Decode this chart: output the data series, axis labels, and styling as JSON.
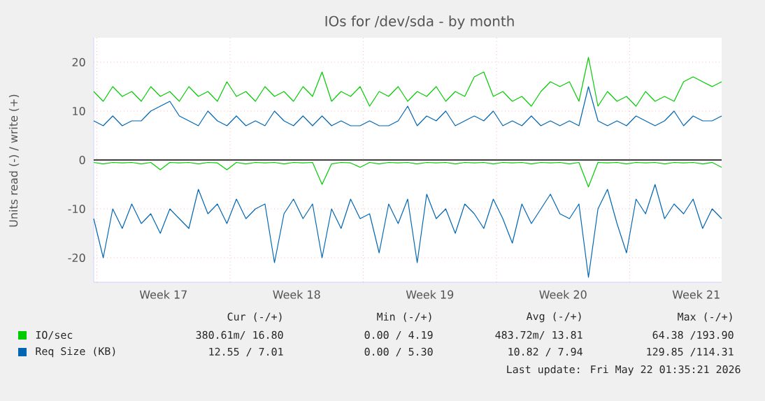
{
  "chart_data": {
    "type": "line",
    "title": "IOs for /dev/sda - by month",
    "ylabel": "Units read (-) / write (+)",
    "x": [
      "2026-04-19T20:00",
      "2026-04-20T08:00",
      "2026-04-20T20:00",
      "2026-04-21T08:00",
      "2026-04-21T20:00",
      "2026-04-22T08:00",
      "2026-04-22T20:00",
      "2026-04-23T08:00",
      "2026-04-23T20:00",
      "2026-04-24T08:00",
      "2026-04-24T20:00",
      "2026-04-25T08:00",
      "2026-04-25T20:00",
      "2026-04-26T08:00",
      "2026-04-26T20:00",
      "2026-04-27T08:00",
      "2026-04-27T20:00",
      "2026-04-28T08:00",
      "2026-04-28T20:00",
      "2026-04-29T08:00",
      "2026-04-29T20:00",
      "2026-04-30T08:00",
      "2026-04-30T20:00",
      "2026-05-01T08:00",
      "2026-05-01T20:00",
      "2026-05-02T08:00",
      "2026-05-02T20:00",
      "2026-05-03T08:00",
      "2026-05-03T20:00",
      "2026-05-04T08:00",
      "2026-05-04T20:00",
      "2026-05-05T08:00",
      "2026-05-05T20:00",
      "2026-05-06T08:00",
      "2026-05-06T20:00",
      "2026-05-07T08:00",
      "2026-05-07T20:00",
      "2026-05-08T08:00",
      "2026-05-08T20:00",
      "2026-05-09T08:00",
      "2026-05-09T20:00",
      "2026-05-10T08:00",
      "2026-05-10T20:00",
      "2026-05-11T08:00",
      "2026-05-11T20:00",
      "2026-05-12T08:00",
      "2026-05-12T20:00",
      "2026-05-13T08:00",
      "2026-05-13T20:00",
      "2026-05-14T08:00",
      "2026-05-14T20:00",
      "2026-05-15T08:00",
      "2026-05-15T20:00",
      "2026-05-16T08:00",
      "2026-05-16T20:00",
      "2026-05-17T08:00",
      "2026-05-17T20:00",
      "2026-05-18T08:00",
      "2026-05-18T20:00",
      "2026-05-19T08:00",
      "2026-05-19T20:00",
      "2026-05-20T08:00",
      "2026-05-20T20:00",
      "2026-05-21T08:00",
      "2026-05-21T20:00",
      "2026-05-22T08:00",
      "2026-05-22T20:00"
    ],
    "series": [
      {
        "name": "IO/sec",
        "color": "#00cc00",
        "values": [
          14,
          12,
          15,
          13,
          14,
          12,
          15,
          13,
          14,
          12,
          15,
          13,
          14,
          12,
          16,
          13,
          14,
          12,
          15,
          13,
          14,
          12,
          15,
          13,
          18,
          12,
          14,
          13,
          15,
          11,
          14,
          13,
          15,
          12,
          14,
          13,
          15,
          12,
          14,
          13,
          17,
          18,
          13,
          14,
          12,
          13,
          11,
          14,
          16,
          15,
          16,
          12,
          21,
          11,
          14,
          12,
          13,
          11,
          14,
          12,
          13,
          12,
          16,
          17,
          16,
          15,
          16
        ]
      },
      {
        "color": "#00cc00",
        "values": [
          -0.5,
          -0.8,
          -0.5,
          -0.6,
          -0.5,
          -0.8,
          -0.5,
          -2,
          -0.5,
          -0.6,
          -0.5,
          -0.8,
          -0.5,
          -0.6,
          -2,
          -0.5,
          -0.8,
          -0.5,
          -0.6,
          -0.5,
          -0.8,
          -0.5,
          -0.6,
          -0.5,
          -5,
          -0.8,
          -0.5,
          -0.6,
          -1.5,
          -0.5,
          -0.8,
          -0.5,
          -0.6,
          -0.5,
          -0.8,
          -0.5,
          -0.6,
          -0.5,
          -0.8,
          -0.5,
          -0.6,
          -0.5,
          -0.8,
          -0.5,
          -0.6,
          -0.5,
          -0.8,
          -0.5,
          -0.6,
          -0.5,
          -0.8,
          -0.5,
          -5.5,
          -0.5,
          -0.6,
          -0.5,
          -0.8,
          -0.5,
          -0.6,
          -0.5,
          -0.8,
          -0.5,
          -0.6,
          -0.5,
          -0.8,
          -0.5,
          -1.5
        ]
      },
      {
        "name": "Req Size (KB)",
        "color": "#0066b3",
        "values": [
          8,
          7,
          9,
          7,
          8,
          8,
          10,
          11,
          12,
          9,
          8,
          7,
          10,
          8,
          7,
          9,
          7,
          8,
          7,
          10,
          8,
          7,
          9,
          7,
          9,
          7,
          8,
          7,
          7,
          8,
          7,
          7,
          8,
          11,
          7,
          9,
          8,
          10,
          7,
          8,
          9,
          8,
          10,
          7,
          8,
          7,
          9,
          7,
          8,
          7,
          8,
          7,
          15,
          8,
          7,
          8,
          7,
          9,
          8,
          7,
          8,
          10,
          7,
          9,
          8,
          8,
          9
        ]
      },
      {
        "color": "#0066b3",
        "values": [
          -12,
          -20,
          -10,
          -14,
          -9,
          -13,
          -11,
          -15,
          -10,
          -12,
          -14,
          -6,
          -11,
          -9,
          -13,
          -8,
          -12,
          -10,
          -9,
          -21,
          -11,
          -8,
          -12,
          -9,
          -20,
          -10,
          -14,
          -8,
          -12,
          -11,
          -19,
          -9,
          -13,
          -8,
          -21,
          -7,
          -12,
          -10,
          -15,
          -9,
          -11,
          -14,
          -8,
          -12,
          -17,
          -9,
          -13,
          -10,
          -7,
          -11,
          -12,
          -9,
          -24,
          -10,
          -6,
          -13,
          -19,
          -8,
          -11,
          -5,
          -12,
          -9,
          -11,
          -8,
          -14,
          -10,
          -12
        ]
      }
    ],
    "xlim": [
      "2026-04-19T20:00",
      "2026-05-22T20:00"
    ],
    "xticks": [
      {
        "value": "2026-04-20",
        "label": null
      },
      {
        "value": "2026-04-23T12:00",
        "label": "Week 17"
      },
      {
        "value": "2026-04-27",
        "label": null
      },
      {
        "value": "2026-04-30T12:00",
        "label": "Week 18"
      },
      {
        "value": "2026-05-04",
        "label": null
      },
      {
        "value": "2026-05-07T12:00",
        "label": "Week 19"
      },
      {
        "value": "2026-05-11",
        "label": null
      },
      {
        "value": "2026-05-14T12:00",
        "label": "Week 20"
      },
      {
        "value": "2026-05-18",
        "label": null
      },
      {
        "value": "2026-05-21T12:00",
        "label": "Week 21"
      }
    ],
    "ylim": [
      -25,
      25
    ],
    "yticks": [
      -20,
      -10,
      0,
      10,
      20
    ],
    "grid": true,
    "legend": "bottom",
    "ref_lines": [
      {
        "axis": "y",
        "value": 0,
        "color": "#000000"
      }
    ],
    "annotations": [
      "Cur (-/+)",
      "Min (-/+)",
      "Avg (-/+)",
      "Max (-/+)",
      "380.61m/ 16.80",
      "0.00 / 4.19",
      "483.72m/ 13.81",
      "64.38 /193.90",
      "12.55 / 7.01",
      "0.00 / 5.30",
      "10.82 / 7.94",
      "129.85 /114.31",
      "Last update: Fri May 22 01:35:21 2026"
    ]
  }
}
